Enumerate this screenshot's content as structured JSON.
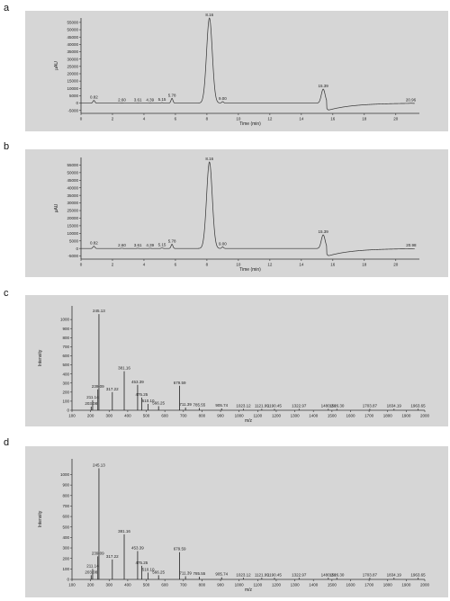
{
  "panel_letters": [
    "a",
    "b",
    "c",
    "d"
  ],
  "chart_data": [
    {
      "type": "line",
      "xlabel": "Time (min)",
      "ylabel": "µAU",
      "xlim": [
        0,
        21.5
      ],
      "ylim": [
        -7000,
        58000
      ],
      "xticks": [
        0,
        2,
        4,
        6,
        8,
        10,
        12,
        14,
        16,
        18,
        20
      ],
      "yticks": [
        -5000,
        0,
        5000,
        10000,
        15000,
        20000,
        25000,
        30000,
        35000,
        40000,
        45000,
        50000,
        55000
      ],
      "peaks": [
        {
          "label": "0.82",
          "x": 0.82,
          "y": 1800
        },
        {
          "label": "2.60",
          "x": 2.6,
          "y": 150
        },
        {
          "label": "3.61",
          "x": 3.61,
          "y": 150
        },
        {
          "label": "4.39",
          "x": 4.39,
          "y": 150
        },
        {
          "label": "5.15",
          "x": 5.15,
          "y": 300
        },
        {
          "label": "5.78",
          "x": 5.78,
          "y": 3200
        },
        {
          "label": "8.16",
          "x": 8.16,
          "y": 58000
        },
        {
          "label": "9.00",
          "x": 9.0,
          "y": 1000
        },
        {
          "label": "15.39",
          "x": 15.39,
          "y": 9500
        },
        {
          "label": "20.96",
          "x": 20.96,
          "y": 100
        }
      ]
    },
    {
      "type": "line",
      "xlabel": "Time (min)",
      "ylabel": "µAU",
      "xlim": [
        0,
        21.5
      ],
      "ylim": [
        -7000,
        60000
      ],
      "xticks": [
        0,
        2,
        4,
        6,
        8,
        10,
        12,
        14,
        16,
        18,
        20
      ],
      "yticks": [
        -5000,
        0,
        5000,
        10000,
        15000,
        20000,
        25000,
        30000,
        35000,
        40000,
        45000,
        50000,
        55000
      ],
      "peaks": [
        {
          "label": "0.82",
          "x": 0.82,
          "y": 1500
        },
        {
          "label": "2.60",
          "x": 2.6,
          "y": 150
        },
        {
          "label": "3.61",
          "x": 3.61,
          "y": 150
        },
        {
          "label": "4.39",
          "x": 4.39,
          "y": 150
        },
        {
          "label": "5.15",
          "x": 5.15,
          "y": 300
        },
        {
          "label": "5.78",
          "x": 5.78,
          "y": 2800
        },
        {
          "label": "8.16",
          "x": 8.16,
          "y": 57000
        },
        {
          "label": "9.00",
          "x": 9.0,
          "y": 1000
        },
        {
          "label": "15.39",
          "x": 15.39,
          "y": 9000
        },
        {
          "label": "20.98",
          "x": 20.98,
          "y": 100
        }
      ]
    },
    {
      "type": "bar",
      "xlabel": "m/z",
      "ylabel": "Intensity",
      "xlim": [
        100,
        2000
      ],
      "ylim": [
        0,
        1150
      ],
      "xticks": [
        100,
        200,
        300,
        400,
        500,
        600,
        700,
        800,
        900,
        1000,
        1100,
        1200,
        1300,
        1400,
        1500,
        1600,
        1700,
        1800,
        1900,
        2000
      ],
      "yticks": [
        0,
        100,
        200,
        300,
        400,
        500,
        600,
        700,
        800,
        900,
        1000
      ],
      "peaks": [
        {
          "label": "203.08",
          "x": 203.08,
          "y": 40
        },
        {
          "label": "211.14",
          "x": 211.14,
          "y": 110
        },
        {
          "label": "239.09",
          "x": 239.09,
          "y": 230
        },
        {
          "label": "245.13",
          "x": 245.13,
          "y": 1060
        },
        {
          "label": "317.22",
          "x": 317.22,
          "y": 200
        },
        {
          "label": "381.16",
          "x": 381.16,
          "y": 430
        },
        {
          "label": "453.39",
          "x": 453.39,
          "y": 280
        },
        {
          "label": "475.25",
          "x": 475.25,
          "y": 140
        },
        {
          "label": "510.10",
          "x": 510.1,
          "y": 70
        },
        {
          "label": "566.25",
          "x": 566.25,
          "y": 45
        },
        {
          "label": "679.59",
          "x": 679.59,
          "y": 270
        },
        {
          "label": "711.39",
          "x": 711.39,
          "y": 30
        },
        {
          "label": "785.55",
          "x": 785.55,
          "y": 25
        },
        {
          "label": "905.74",
          "x": 905.74,
          "y": 20
        },
        {
          "label": "1023.12",
          "x": 1023.12,
          "y": 15
        },
        {
          "label": "1121.99",
          "x": 1121.99,
          "y": 15
        },
        {
          "label": "1190.45",
          "x": 1190.45,
          "y": 15
        },
        {
          "label": "1322.97",
          "x": 1322.97,
          "y": 15
        },
        {
          "label": "1480.24",
          "x": 1480.24,
          "y": 15
        },
        {
          "label": "1526.30",
          "x": 1526.3,
          "y": 15
        },
        {
          "label": "1703.87",
          "x": 1703.87,
          "y": 15
        },
        {
          "label": "1834.19",
          "x": 1834.19,
          "y": 15
        },
        {
          "label": "1963.65",
          "x": 1963.65,
          "y": 15
        }
      ]
    },
    {
      "type": "bar",
      "xlabel": "m/z",
      "ylabel": "Intensity",
      "xlim": [
        100,
        2000
      ],
      "ylim": [
        0,
        1150
      ],
      "xticks": [
        100,
        200,
        300,
        400,
        500,
        600,
        700,
        800,
        900,
        1000,
        1100,
        1200,
        1300,
        1400,
        1500,
        1600,
        1700,
        1800,
        1900,
        2000
      ],
      "yticks": [
        0,
        100,
        200,
        300,
        400,
        500,
        600,
        700,
        800,
        900,
        1000
      ],
      "peaks": [
        {
          "label": "203.08",
          "x": 203.08,
          "y": 40
        },
        {
          "label": "211.14",
          "x": 211.14,
          "y": 100
        },
        {
          "label": "239.09",
          "x": 239.09,
          "y": 220
        },
        {
          "label": "245.13",
          "x": 245.13,
          "y": 1060
        },
        {
          "label": "317.22",
          "x": 317.22,
          "y": 190
        },
        {
          "label": "381.16",
          "x": 381.16,
          "y": 430
        },
        {
          "label": "453.39",
          "x": 453.39,
          "y": 270
        },
        {
          "label": "475.25",
          "x": 475.25,
          "y": 130
        },
        {
          "label": "510.10",
          "x": 510.1,
          "y": 65
        },
        {
          "label": "566.25",
          "x": 566.25,
          "y": 40
        },
        {
          "label": "679.59",
          "x": 679.59,
          "y": 260
        },
        {
          "label": "711.39",
          "x": 711.39,
          "y": 30
        },
        {
          "label": "785.55",
          "x": 785.55,
          "y": 25
        },
        {
          "label": "905.74",
          "x": 905.74,
          "y": 20
        },
        {
          "label": "1023.12",
          "x": 1023.12,
          "y": 15
        },
        {
          "label": "1121.99",
          "x": 1121.99,
          "y": 15
        },
        {
          "label": "1190.45",
          "x": 1190.45,
          "y": 15
        },
        {
          "label": "1322.97",
          "x": 1322.97,
          "y": 15
        },
        {
          "label": "1480.24",
          "x": 1480.24,
          "y": 15
        },
        {
          "label": "1526.30",
          "x": 1526.3,
          "y": 15
        },
        {
          "label": "1703.87",
          "x": 1703.87,
          "y": 15
        },
        {
          "label": "1834.19",
          "x": 1834.19,
          "y": 15
        },
        {
          "label": "1963.65",
          "x": 1963.65,
          "y": 15
        }
      ]
    }
  ]
}
